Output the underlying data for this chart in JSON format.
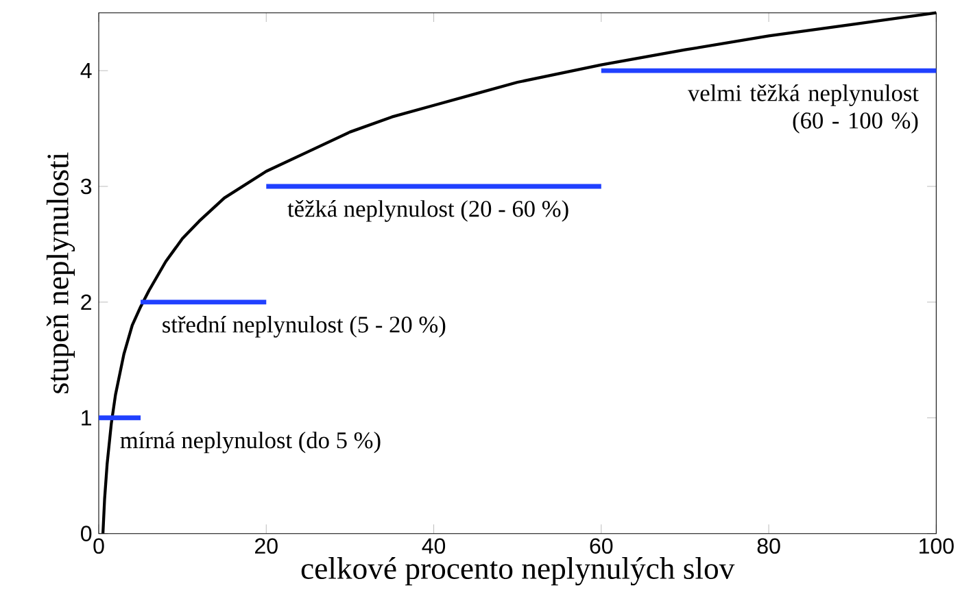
{
  "chart_data": {
    "type": "line",
    "xlabel": "celkové procento neplynulých slov",
    "ylabel": "stupeň neplynulosti",
    "xlim": [
      0,
      100
    ],
    "ylim": [
      0,
      4.5
    ],
    "xticks": [
      0,
      20,
      40,
      60,
      80,
      100
    ],
    "yticks": [
      0,
      1,
      2,
      3,
      4
    ],
    "grid": false,
    "series": [
      {
        "color": "#000000",
        "x": [
          0.5,
          0.7,
          1,
          1.5,
          2,
          3,
          4,
          5,
          6,
          8,
          10,
          12,
          15,
          20,
          25,
          30,
          35,
          40,
          45,
          50,
          60,
          70,
          80,
          90,
          100
        ],
        "values": [
          0,
          0.3,
          0.6,
          0.95,
          1.2,
          1.55,
          1.8,
          1.96,
          2.1,
          2.35,
          2.55,
          2.7,
          2.9,
          3.13,
          3.3,
          3.47,
          3.6,
          3.7,
          3.8,
          3.9,
          4.05,
          4.18,
          4.3,
          4.4,
          4.5
        ]
      },
      {
        "color": "#2040ff",
        "x": [
          0,
          5
        ],
        "values": [
          1,
          1
        ]
      },
      {
        "color": "#2040ff",
        "x": [
          5,
          20
        ],
        "values": [
          2,
          2
        ]
      },
      {
        "color": "#2040ff",
        "x": [
          20,
          60
        ],
        "values": [
          3,
          3
        ]
      },
      {
        "color": "#2040ff",
        "x": [
          60,
          100
        ],
        "values": [
          4,
          4
        ]
      }
    ],
    "annotations": [
      {
        "text": "mírná neplynulost (do 5 %)",
        "x": 5,
        "y": 1
      },
      {
        "text": "střední neplynulost (5 - 20 %)",
        "x": 20,
        "y": 2
      },
      {
        "text": "těžká neplynulost (20 - 60 %)",
        "x": 60,
        "y": 3
      },
      {
        "text": "velmi těžká neplynulost (60 - 100 %)",
        "x": 100,
        "y": 4
      }
    ]
  }
}
